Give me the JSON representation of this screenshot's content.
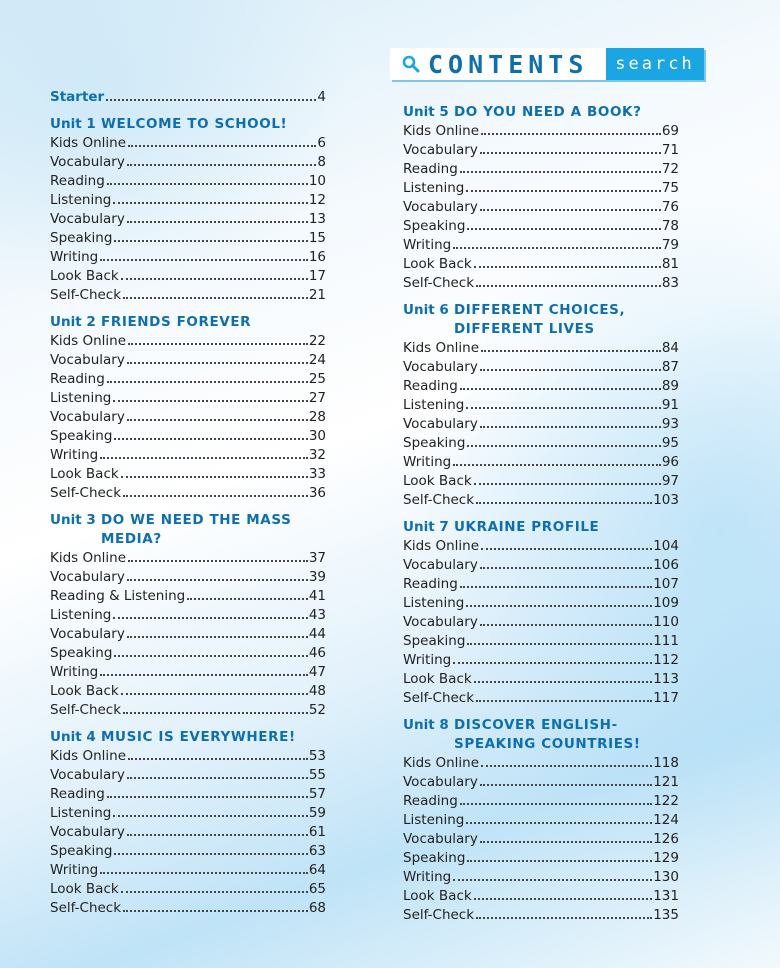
{
  "header": {
    "title": "CONTENTS",
    "search": "search"
  },
  "starter": {
    "label": "Starter",
    "page": "4"
  },
  "left_units": [
    {
      "label": "Unit 1",
      "title": [
        "WELCOME TO SCHOOL!"
      ],
      "entries": [
        [
          "Kids Online",
          "6"
        ],
        [
          "Vocabulary",
          "8"
        ],
        [
          "Reading",
          "10"
        ],
        [
          "Listening",
          "12"
        ],
        [
          "Vocabulary",
          "13"
        ],
        [
          "Speaking",
          "15"
        ],
        [
          "Writing",
          "16"
        ],
        [
          "Look Back",
          "17"
        ],
        [
          "Self-Check",
          "21"
        ]
      ]
    },
    {
      "label": "Unit 2",
      "title": [
        "FRIENDS FOREVER"
      ],
      "entries": [
        [
          "Kids Online",
          "22"
        ],
        [
          "Vocabulary",
          "24"
        ],
        [
          "Reading",
          "25"
        ],
        [
          "Listening",
          "27"
        ],
        [
          "Vocabulary",
          "28"
        ],
        [
          "Speaking",
          "30"
        ],
        [
          "Writing",
          "32"
        ],
        [
          "Look Back",
          "33"
        ],
        [
          "Self-Check",
          "36"
        ]
      ]
    },
    {
      "label": "Unit 3",
      "title": [
        "DO WE NEED THE MASS",
        "MEDIA?"
      ],
      "entries": [
        [
          "Kids Online",
          "37"
        ],
        [
          "Vocabulary",
          "39"
        ],
        [
          "Reading & Listening",
          "41"
        ],
        [
          "Listening",
          "43"
        ],
        [
          "Vocabulary",
          "44"
        ],
        [
          "Speaking",
          "46"
        ],
        [
          "Writing",
          "47"
        ],
        [
          "Look Back",
          "48"
        ],
        [
          "Self-Check",
          "52"
        ]
      ]
    },
    {
      "label": "Unit 4",
      "title": [
        "MUSIC IS EVERYWHERE!"
      ],
      "entries": [
        [
          "Kids Online",
          "53"
        ],
        [
          "Vocabulary",
          "55"
        ],
        [
          "Reading",
          "57"
        ],
        [
          "Listening",
          "59"
        ],
        [
          "Vocabulary",
          "61"
        ],
        [
          "Speaking",
          "63"
        ],
        [
          "Writing",
          "64"
        ],
        [
          "Look Back",
          "65"
        ],
        [
          "Self-Check",
          "68"
        ]
      ]
    }
  ],
  "right_units": [
    {
      "label": "Unit 5",
      "title": [
        "DO YOU NEED A BOOK?"
      ],
      "entries": [
        [
          "Kids Online",
          "69"
        ],
        [
          "Vocabulary",
          "71"
        ],
        [
          "Reading",
          "72"
        ],
        [
          "Listening",
          "75"
        ],
        [
          "Vocabulary",
          "76"
        ],
        [
          "Speaking",
          "78"
        ],
        [
          "Writing",
          "79"
        ],
        [
          "Look Back",
          "81"
        ],
        [
          "Self-Check",
          "83"
        ]
      ]
    },
    {
      "label": "Unit 6",
      "title": [
        "DIFFERENT CHOICES,",
        "DIFFERENT LIVES"
      ],
      "entries": [
        [
          "Kids Online",
          "84"
        ],
        [
          "Vocabulary",
          "87"
        ],
        [
          "Reading",
          "89"
        ],
        [
          "Listening",
          "91"
        ],
        [
          "Vocabulary",
          "93"
        ],
        [
          "Speaking",
          "95"
        ],
        [
          "Writing",
          "96"
        ],
        [
          "Look Back",
          "97"
        ],
        [
          "Self-Check",
          "103"
        ]
      ]
    },
    {
      "label": "Unit 7",
      "title": [
        "UKRAINE PROFILE"
      ],
      "entries": [
        [
          "Kids Online",
          "104"
        ],
        [
          "Vocabulary",
          "106"
        ],
        [
          "Reading",
          "107"
        ],
        [
          "Listening",
          "109"
        ],
        [
          "Vocabulary",
          "110"
        ],
        [
          "Speaking",
          "111"
        ],
        [
          "Writing",
          "112"
        ],
        [
          "Look Back",
          "113"
        ],
        [
          "Self-Check",
          "117"
        ]
      ]
    },
    {
      "label": "Unit 8",
      "title": [
        "DISCOVER ENGLISH-",
        "SPEAKING COUNTRIES!"
      ],
      "entries": [
        [
          "Kids Online",
          "118"
        ],
        [
          "Vocabulary",
          "121"
        ],
        [
          "Reading",
          "122"
        ],
        [
          "Listening",
          "124"
        ],
        [
          "Vocabulary",
          "126"
        ],
        [
          "Speaking",
          "129"
        ],
        [
          "Writing",
          "130"
        ],
        [
          "Look Back",
          "131"
        ],
        [
          "Self-Check",
          "135"
        ]
      ]
    }
  ]
}
